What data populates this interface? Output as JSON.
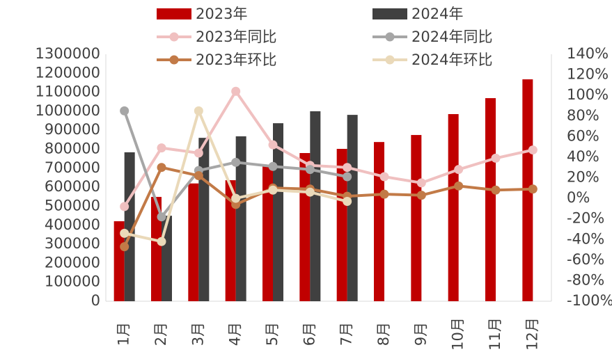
{
  "chart_data": {
    "type": "bar_line",
    "categories": [
      "1月",
      "2月",
      "3月",
      "4月",
      "5月",
      "6月",
      "7月",
      "8月",
      "9月",
      "10月",
      "11月",
      "12月"
    ],
    "series": [
      {
        "name": "2023年",
        "type": "bar",
        "color": "#c00000",
        "values": [
          421000,
          549000,
          620000,
          637000,
          710000,
          780000,
          802000,
          838000,
          875000,
          985000,
          1069000,
          1168000
        ]
      },
      {
        "name": "2024年",
        "type": "bar",
        "color": "#404040",
        "values": [
          784000,
          450000,
          860000,
          868000,
          937000,
          1000000,
          981000,
          null,
          null,
          null,
          null,
          null
        ]
      },
      {
        "name": "2023年同比",
        "type": "line",
        "axis": "y2",
        "color": "#f0c0c0",
        "values": [
          -8,
          49,
          44,
          104,
          52,
          32,
          30,
          21,
          15,
          28,
          39,
          47
        ]
      },
      {
        "name": "2024年同比",
        "type": "line",
        "axis": "y2",
        "color": "#a6a6a6",
        "values": [
          85,
          -18,
          27,
          35,
          31,
          28,
          21,
          null,
          null,
          null,
          null,
          null
        ]
      },
      {
        "name": "2023年环比",
        "type": "line",
        "axis": "y2",
        "color": "#c27a47",
        "values": [
          -47,
          30,
          22,
          -6,
          10,
          9,
          2,
          4,
          3,
          12,
          8,
          9
        ]
      },
      {
        "name": "2024年环比",
        "type": "line",
        "axis": "y2",
        "color": "#ead9b9",
        "values": [
          -34,
          -42,
          85,
          0,
          8,
          6,
          -3,
          null,
          null,
          null,
          null,
          null
        ]
      }
    ],
    "ylim": [
      0,
      1300000
    ],
    "yticks": [
      0,
      100000,
      200000,
      300000,
      400000,
      500000,
      600000,
      700000,
      800000,
      900000,
      1000000,
      1100000,
      1200000,
      1300000
    ],
    "y2lim": [
      -100,
      140
    ],
    "y2ticks": [
      {
        "value": -100,
        "label": "-100%"
      },
      {
        "value": -80,
        "label": "-80%"
      },
      {
        "value": -60,
        "label": "-60%"
      },
      {
        "value": -40,
        "label": "-40%"
      },
      {
        "value": -20,
        "label": "-20%"
      },
      {
        "value": 0,
        "label": "0%"
      },
      {
        "value": 20,
        "label": "20%"
      },
      {
        "value": 40,
        "label": "40%"
      },
      {
        "value": 60,
        "label": "60%"
      },
      {
        "value": 80,
        "label": "80%"
      },
      {
        "value": 100,
        "label": "100%"
      },
      {
        "value": 120,
        "label": "120%"
      },
      {
        "value": 140,
        "label": "140%"
      }
    ],
    "legend": "top"
  }
}
